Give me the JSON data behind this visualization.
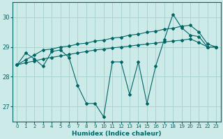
{
  "xlabel": "Humidex (Indice chaleur)",
  "bg_color": "#cceae8",
  "grid_color": "#aad4d0",
  "line_color": "#006666",
  "x": [
    0,
    1,
    2,
    3,
    4,
    5,
    6,
    7,
    8,
    9,
    10,
    11,
    12,
    13,
    14,
    15,
    16,
    17,
    18,
    19,
    20,
    21,
    22,
    23
  ],
  "y_main": [
    28.4,
    28.8,
    28.6,
    28.35,
    28.85,
    28.9,
    28.65,
    27.7,
    27.1,
    27.1,
    26.65,
    28.5,
    28.5,
    27.4,
    28.5,
    27.1,
    28.35,
    29.25,
    30.1,
    29.65,
    29.4,
    29.35,
    29.0,
    29.0
  ],
  "y_upper": [
    28.4,
    28.57,
    28.73,
    28.9,
    28.93,
    29.0,
    29.03,
    29.1,
    29.13,
    29.2,
    29.23,
    29.3,
    29.33,
    29.4,
    29.43,
    29.5,
    29.53,
    29.6,
    29.63,
    29.7,
    29.73,
    29.5,
    29.1,
    29.0
  ],
  "y_lower": [
    28.4,
    28.47,
    28.53,
    28.6,
    28.65,
    28.7,
    28.75,
    28.8,
    28.85,
    28.9,
    28.93,
    28.97,
    29.0,
    29.03,
    29.07,
    29.1,
    29.13,
    29.17,
    29.2,
    29.23,
    29.27,
    29.15,
    29.0,
    29.0
  ],
  "ylim": [
    26.5,
    30.5
  ],
  "yticks": [
    27,
    28,
    29,
    30
  ],
  "markersize": 2.0,
  "linewidth": 0.8
}
